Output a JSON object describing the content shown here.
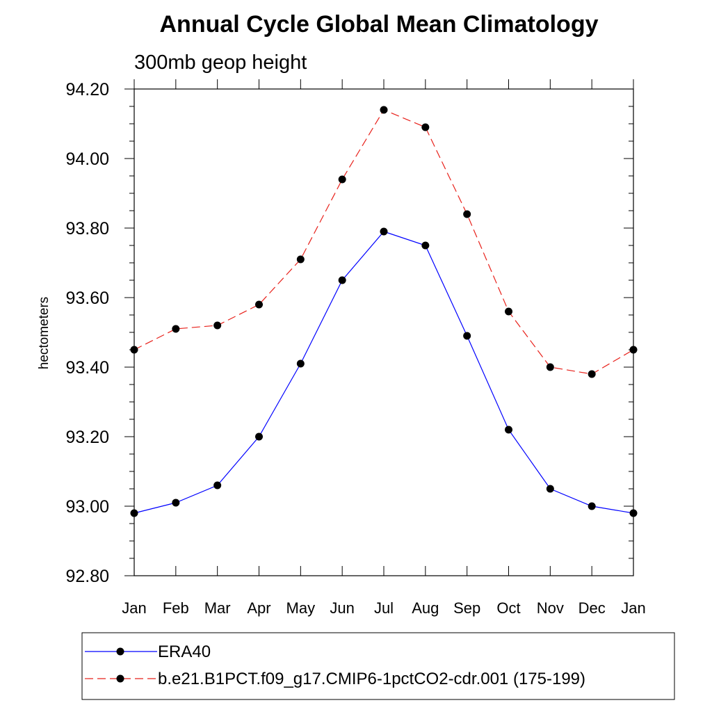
{
  "chart_data": {
    "type": "line",
    "title": "Annual Cycle Global Mean Climatology",
    "subtitle": "300mb geop height",
    "xlabel": "",
    "ylabel": "hectometers",
    "categories": [
      "Jan",
      "Feb",
      "Mar",
      "Apr",
      "May",
      "Jun",
      "Jul",
      "Aug",
      "Sep",
      "Oct",
      "Nov",
      "Dec",
      "Jan"
    ],
    "ylim": [
      92.8,
      94.2
    ],
    "yticks": [
      "92.80",
      "93.00",
      "93.20",
      "93.40",
      "93.60",
      "93.80",
      "94.00",
      "94.20"
    ],
    "grid": false,
    "legend_position": "bottom",
    "series": [
      {
        "name": "ERA40",
        "color": "#0000ff",
        "dash": "solid",
        "values": [
          92.98,
          93.01,
          93.06,
          93.2,
          93.41,
          93.65,
          93.79,
          93.75,
          93.49,
          93.22,
          93.05,
          93.0,
          92.98
        ]
      },
      {
        "name": "b.e21.B1PCT.f09_g17.CMIP6-1pctCO2-cdr.001 (175-199)",
        "color": "#e8201a",
        "dash": "dashed",
        "values": [
          93.45,
          93.51,
          93.52,
          93.58,
          93.71,
          93.94,
          94.14,
          94.09,
          93.84,
          93.56,
          93.4,
          93.38,
          93.45
        ]
      }
    ]
  }
}
